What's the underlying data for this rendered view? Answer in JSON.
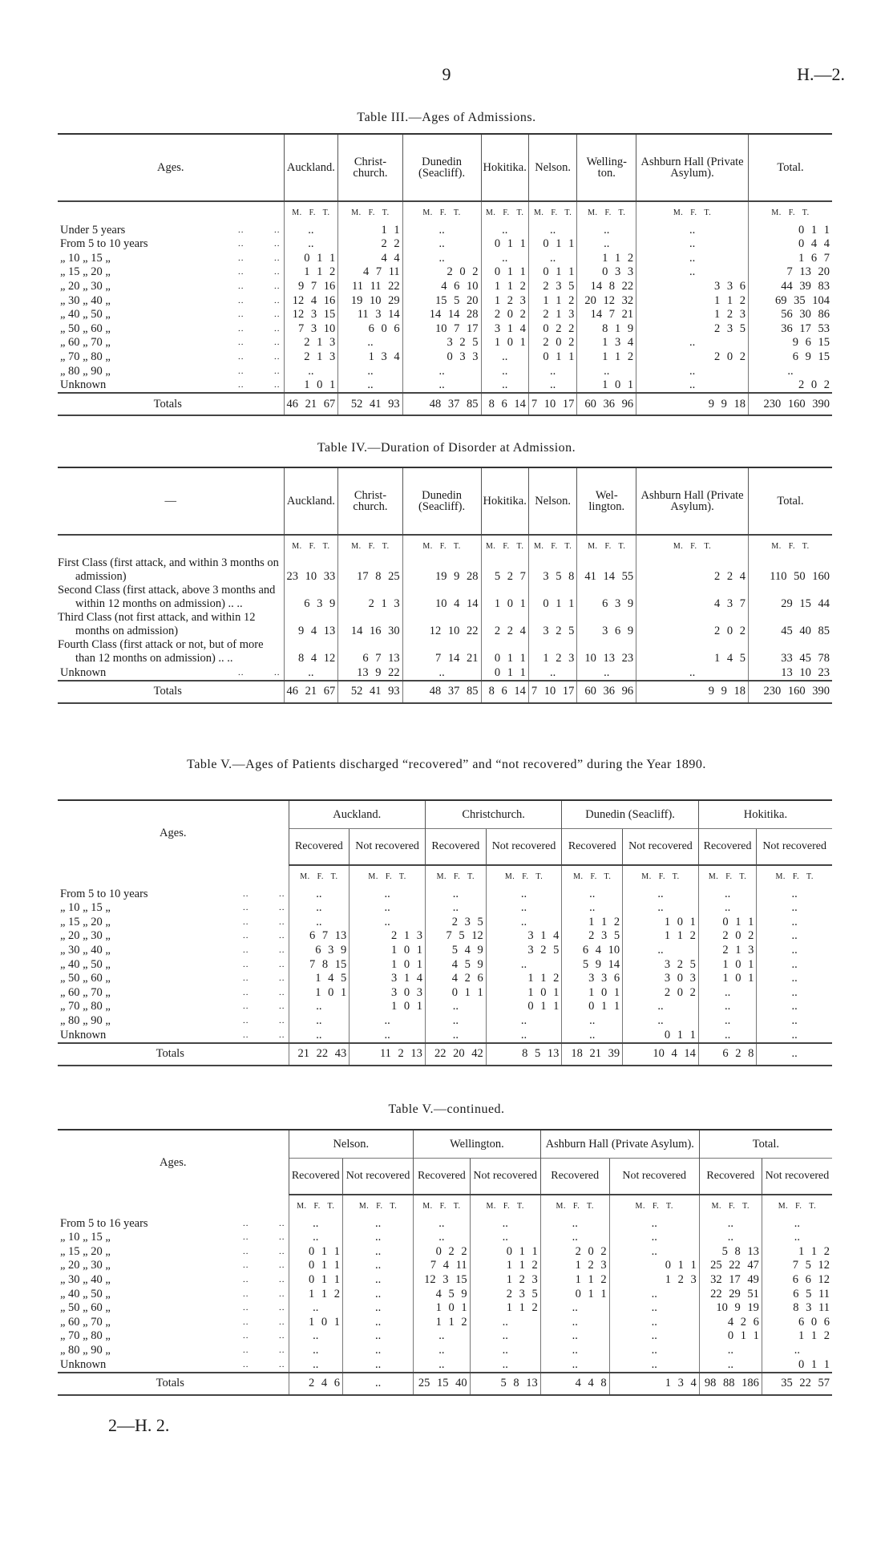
{
  "page": {
    "number": "9",
    "ref": "H.—2.",
    "footer": "2—H. 2."
  },
  "mft": "M. F. T.",
  "blank": "..",
  "tables": [
    {
      "title": "Table III.—Ages of Admissions.",
      "corner": "Ages.",
      "columns": [
        "Auckland.",
        "Christ-church.",
        "Dunedin (Seacliff).",
        "Hokitika.",
        "Nelson.",
        "Welling-ton.",
        "Ashburn Hall (Private Asylum).",
        "Total."
      ],
      "rows": [
        {
          "label": "Under 5 years",
          "cells": [
            "..",
            "1 1",
            "..",
            "..",
            "..",
            "..",
            "..",
            "0 1 1"
          ]
        },
        {
          "label": "From 5 to 10 years",
          "cells": [
            "..",
            "2 2",
            "..",
            "0 1 1",
            "0 1 1",
            "..",
            "..",
            "0 4 4"
          ]
        },
        {
          "label": "„ 10 „ 15 „",
          "cells": [
            "0 1 1",
            "4 4",
            "..",
            "..",
            "..",
            "1 1 2",
            "..",
            "1 6 7"
          ]
        },
        {
          "label": "„ 15 „ 20 „",
          "cells": [
            "1 1 2",
            "4 7 11",
            "2 0 2",
            "0 1 1",
            "0 1 1",
            "0 3 3",
            "..",
            "7 13 20"
          ]
        },
        {
          "label": "„ 20 „ 30 „",
          "cells": [
            "9 7 16",
            "11 11 22",
            "4 6 10",
            "1 1 2",
            "2 3 5",
            "14 8 22",
            "3 3 6",
            "44 39 83"
          ]
        },
        {
          "label": "„ 30 „ 40 „",
          "cells": [
            "12 4 16",
            "19 10 29",
            "15 5 20",
            "1 2 3",
            "1 1 2",
            "20 12 32",
            "1 1 2",
            "69 35 104"
          ]
        },
        {
          "label": "„ 40 „ 50 „",
          "cells": [
            "12 3 15",
            "11 3 14",
            "14 14 28",
            "2 0 2",
            "2 1 3",
            "14 7 21",
            "1 2 3",
            "56 30 86"
          ]
        },
        {
          "label": "„ 50 „ 60 „",
          "cells": [
            "7 3 10",
            "6 0 6",
            "10 7 17",
            "3 1 4",
            "0 2 2",
            "8 1 9",
            "2 3 5",
            "36 17 53"
          ]
        },
        {
          "label": "„ 60 „ 70 „",
          "cells": [
            "2 1 3",
            "..",
            "3 2 5",
            "1 0 1",
            "2 0 2",
            "1 3 4",
            "..",
            "9 6 15"
          ]
        },
        {
          "label": "„ 70 „ 80 „",
          "cells": [
            "2 1 3",
            "1 3 4",
            "0 3 3",
            "..",
            "0 1 1",
            "1 1 2",
            "2 0 2",
            "6 9 15"
          ]
        },
        {
          "label": "„ 80 „ 90 „",
          "cells": [
            "..",
            "..",
            "..",
            "..",
            "..",
            "..",
            "..",
            ".."
          ]
        },
        {
          "label": "Unknown",
          "cells": [
            "1 0 1",
            "..",
            "..",
            "..",
            "..",
            "1 0 1",
            "..",
            "2 0 2"
          ]
        }
      ],
      "totals": {
        "label": "Totals",
        "cells": [
          "46 21 67",
          "52 41 93",
          "48 37 85",
          "8 6 14",
          "7 10 17",
          "60 36 96",
          "9 9 18",
          "230 160 390"
        ]
      }
    },
    {
      "title": "Table IV.—Duration of Disorder at Admission.",
      "corner": "—",
      "columns": [
        "Auckland.",
        "Christ-church.",
        "Dunedin (Seacliff).",
        "Hokitika.",
        "Nelson.",
        "Wel-lington.",
        "Ashburn Hall (Private Asylum).",
        "Total."
      ],
      "rows": [
        {
          "label": "First Class (first attack, and within 3 months on admission)",
          "cells": [
            "23 10 33",
            "17 8 25",
            "19 9 28",
            "5 2 7",
            "3 5 8",
            "41 14 55",
            "2 2 4",
            "110 50 160"
          ]
        },
        {
          "label": "Second Class (first attack, above 3 months and within 12 months on admission) .. ..",
          "cells": [
            "6 3 9",
            "2 1 3",
            "10 4 14",
            "1 0 1",
            "0 1 1",
            "6 3 9",
            "4 3 7",
            "29 15 44"
          ]
        },
        {
          "label": "Third Class (not first attack, and within 12 months on admission)",
          "cells": [
            "9 4 13",
            "14 16 30",
            "12 10 22",
            "2 2 4",
            "3 2 5",
            "3 6 9",
            "2 0 2",
            "45 40 85"
          ]
        },
        {
          "label": "Fourth Class (first attack or not, but of more than 12 months on admission) .. ..",
          "cells": [
            "8 4 12",
            "6 7 13",
            "7 14 21",
            "0 1 1",
            "1 2 3",
            "10 13 23",
            "1 4 5",
            "33 45 78"
          ]
        },
        {
          "label": "Unknown",
          "cells": [
            "..",
            "13 9 22",
            "..",
            "0 1 1",
            "..",
            "..",
            "..",
            "13 10 23"
          ]
        }
      ],
      "totals": {
        "label": "Totals",
        "cells": [
          "46 21 67",
          "52 41 93",
          "48 37 85",
          "8 6 14",
          "7 10 17",
          "60 36 96",
          "9 9 18",
          "230 160 390"
        ]
      }
    },
    {
      "title": "Table V.—Ages of Patients discharged “recovered” and “not recovered” during the Year 1890.",
      "corner": "Ages.",
      "columns": [
        "Auckland.",
        "Christchurch.",
        "Dunedin (Seacliff).",
        "Hokitika."
      ],
      "subcolumns": [
        "Recovered",
        "Not recovered"
      ],
      "rows": [
        {
          "label": "From 5 to 10 years",
          "cells": [
            "..",
            "..",
            "..",
            "..",
            "..",
            "..",
            "..",
            ".."
          ]
        },
        {
          "label": "„ 10 „ 15 „",
          "cells": [
            "..",
            "..",
            "..",
            "..",
            "..",
            "..",
            "..",
            ".."
          ]
        },
        {
          "label": "„ 15 „ 20 „",
          "cells": [
            "..",
            "..",
            "2 3 5",
            "..",
            "1 1 2",
            "1 0 1",
            "0 1 1",
            ".."
          ]
        },
        {
          "label": "„ 20 „ 30 „",
          "cells": [
            "6 7 13",
            "2 1 3",
            "7 5 12",
            "3 1 4",
            "2 3 5",
            "1 1 2",
            "2 0 2",
            ".."
          ]
        },
        {
          "label": "„ 30 „ 40 „",
          "cells": [
            "6 3 9",
            "1 0 1",
            "5 4 9",
            "3 2 5",
            "6 4 10",
            "..",
            "2 1 3",
            ".."
          ]
        },
        {
          "label": "„ 40 „ 50 „",
          "cells": [
            "7 8 15",
            "1 0 1",
            "4 5 9",
            "..",
            "5 9 14",
            "3 2 5",
            "1 0 1",
            ".."
          ]
        },
        {
          "label": "„ 50 „ 60 „",
          "cells": [
            "1 4 5",
            "3 1 4",
            "4 2 6",
            "1 1 2",
            "3 3 6",
            "3 0 3",
            "1 0 1",
            ".."
          ]
        },
        {
          "label": "„ 60 „ 70 „",
          "cells": [
            "1 0 1",
            "3 0 3",
            "0 1 1",
            "1 0 1",
            "1 0 1",
            "2 0 2",
            "..",
            ".."
          ]
        },
        {
          "label": "„ 70 „ 80 „",
          "cells": [
            "..",
            "1 0 1",
            "..",
            "0 1 1",
            "0 1 1",
            "..",
            "..",
            ".."
          ]
        },
        {
          "label": "„ 80 „ 90 „",
          "cells": [
            "..",
            "..",
            "..",
            "..",
            "..",
            "..",
            "..",
            ".."
          ]
        },
        {
          "label": "Unknown",
          "cells": [
            "..",
            "..",
            "..",
            "..",
            "..",
            "0 1 1",
            "..",
            ".."
          ]
        }
      ],
      "totals": {
        "label": "Totals",
        "cells": [
          "21 22 43",
          "11 2 13",
          "22 20 42",
          "8 5 13",
          "18 21 39",
          "10 4 14",
          "6 2 8",
          ".."
        ]
      }
    },
    {
      "title": "Table V.—continued.",
      "corner": "Ages.",
      "columns": [
        "Nelson.",
        "Wellington.",
        "Ashburn Hall (Private Asylum).",
        "Total."
      ],
      "subcolumns": [
        "Recovered",
        "Not recovered"
      ],
      "rows": [
        {
          "label": "From 5 to 16 years",
          "cells": [
            "..",
            "..",
            "..",
            "..",
            "..",
            "..",
            "..",
            ".."
          ]
        },
        {
          "label": "„ 10 „ 15 „",
          "cells": [
            "..",
            "..",
            "..",
            "..",
            "..",
            "..",
            "..",
            ".."
          ]
        },
        {
          "label": "„ 15 „ 20 „",
          "cells": [
            "0 1 1",
            "..",
            "0 2 2",
            "0 1 1",
            "2 0 2",
            "..",
            "5 8 13",
            "1 1 2"
          ]
        },
        {
          "label": "„ 20 „ 30 „",
          "cells": [
            "0 1 1",
            "..",
            "7 4 11",
            "1 1 2",
            "1 2 3",
            "0 1 1",
            "25 22 47",
            "7 5 12"
          ]
        },
        {
          "label": "„ 30 „ 40 „",
          "cells": [
            "0 1 1",
            "..",
            "12 3 15",
            "1 2 3",
            "1 1 2",
            "1 2 3",
            "32 17 49",
            "6 6 12"
          ]
        },
        {
          "label": "„ 40 „ 50 „",
          "cells": [
            "1 1 2",
            "..",
            "4 5 9",
            "2 3 5",
            "0 1 1",
            "..",
            "22 29 51",
            "6 5 11"
          ]
        },
        {
          "label": "„ 50 „ 60 „",
          "cells": [
            "..",
            "..",
            "1 0 1",
            "1 1 2",
            "..",
            "..",
            "10 9 19",
            "8 3 11"
          ]
        },
        {
          "label": "„ 60 „ 70 „",
          "cells": [
            "1 0 1",
            "..",
            "1 1 2",
            "..",
            "..",
            "..",
            "4 2 6",
            "6 0 6"
          ]
        },
        {
          "label": "„ 70 „ 80 „",
          "cells": [
            "..",
            "..",
            "..",
            "..",
            "..",
            "..",
            "0 1 1",
            "1 1 2"
          ]
        },
        {
          "label": "„ 80 „ 90 „",
          "cells": [
            "..",
            "..",
            "..",
            "..",
            "..",
            "..",
            "..",
            ".."
          ]
        },
        {
          "label": "Unknown",
          "cells": [
            "..",
            "..",
            "..",
            "..",
            "..",
            "..",
            "..",
            "0 1 1"
          ]
        }
      ],
      "totals": {
        "label": "Totals",
        "cells": [
          "2 4 6",
          "..",
          "25 15 40",
          "5 8 13",
          "4 4 8",
          "1 3 4",
          "98 88 186",
          "35 22 57"
        ]
      }
    }
  ]
}
